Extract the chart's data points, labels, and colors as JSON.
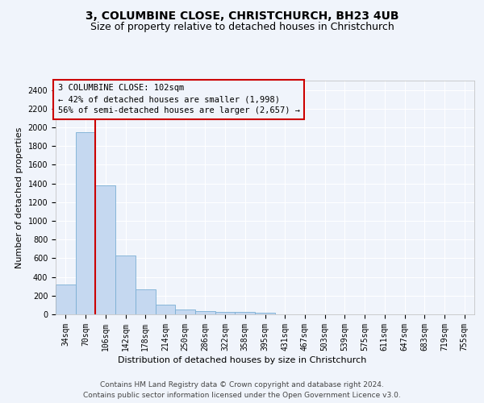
{
  "title1": "3, COLUMBINE CLOSE, CHRISTCHURCH, BH23 4UB",
  "title2": "Size of property relative to detached houses in Christchurch",
  "xlabel": "Distribution of detached houses by size in Christchurch",
  "ylabel": "Number of detached properties",
  "footer1": "Contains HM Land Registry data © Crown copyright and database right 2024.",
  "footer2": "Contains public sector information licensed under the Open Government Licence v3.0.",
  "bar_labels": [
    "34sqm",
    "70sqm",
    "106sqm",
    "142sqm",
    "178sqm",
    "214sqm",
    "250sqm",
    "286sqm",
    "322sqm",
    "358sqm",
    "395sqm",
    "431sqm",
    "467sqm",
    "503sqm",
    "539sqm",
    "575sqm",
    "611sqm",
    "647sqm",
    "683sqm",
    "719sqm",
    "755sqm"
  ],
  "bar_values": [
    315,
    1950,
    1380,
    630,
    270,
    100,
    50,
    35,
    28,
    22,
    15,
    0,
    0,
    0,
    0,
    0,
    0,
    0,
    0,
    0,
    0
  ],
  "bar_color": "#c5d8f0",
  "bar_edge_color": "#7aafd4",
  "ylim": [
    0,
    2500
  ],
  "yticks": [
    0,
    200,
    400,
    600,
    800,
    1000,
    1200,
    1400,
    1600,
    1800,
    2000,
    2200,
    2400
  ],
  "property_label": "3 COLUMBINE CLOSE: 102sqm",
  "annotation_line1": "← 42% of detached houses are smaller (1,998)",
  "annotation_line2": "56% of semi-detached houses are larger (2,657) →",
  "vline_color": "#cc0000",
  "background_color": "#f0f4fb",
  "grid_color": "#ffffff",
  "title1_fontsize": 10,
  "title2_fontsize": 9,
  "xlabel_fontsize": 8,
  "ylabel_fontsize": 8,
  "tick_fontsize": 7,
  "footer_fontsize": 6.5
}
